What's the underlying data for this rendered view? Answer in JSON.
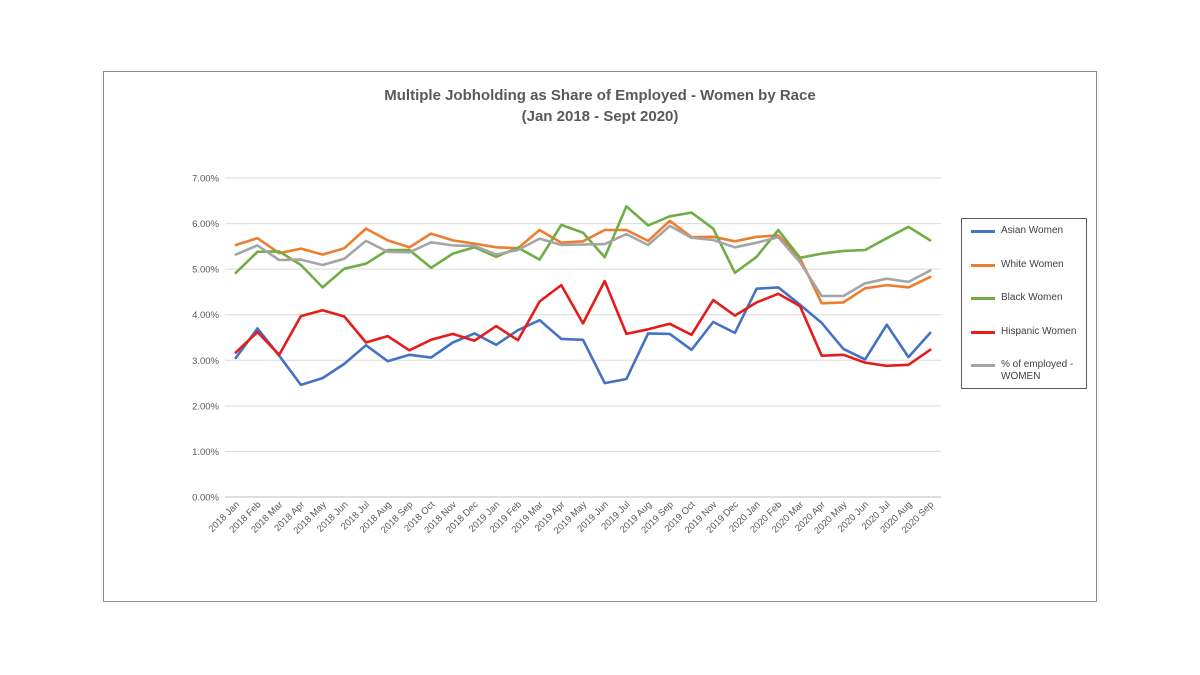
{
  "chart_data": {
    "type": "line",
    "title": "Multiple Jobholding as Share of Employed - Women by Race",
    "subtitle": "(Jan 2018 - Sept 2020)",
    "xlabel": "",
    "ylabel": "",
    "ylim": [
      0,
      0.07
    ],
    "yticks": [
      "0.00%",
      "1.00%",
      "2.00%",
      "3.00%",
      "4.00%",
      "5.00%",
      "6.00%",
      "7.00%"
    ],
    "grid": true,
    "legend_position": "right",
    "categories": [
      "2018 Jan",
      "2018 Feb",
      "2018 Mar",
      "2018 Apr",
      "2018 May",
      "2018 Jun",
      "2018 Jul",
      "2018 Aug",
      "2018 Sep",
      "2018 Oct",
      "2018 Nov",
      "2018 Dec",
      "2019 Jan",
      "2019 Feb",
      "2019 Mar",
      "2019 Apr",
      "2019 May",
      "2019 Jun",
      "2019 Jul",
      "2019 Aug",
      "2019 Sep",
      "2019 Oct",
      "2019 Nov",
      "2019 Dec",
      "2020 Jan",
      "2020 Feb",
      "2020 Mar",
      "2020 Apr",
      "2020 May",
      "2020 Jun",
      "2020 Jul",
      "2020 Aug",
      "2020 Sep"
    ],
    "series": [
      {
        "name": "Asian Women",
        "color": "#4472c4",
        "values": [
          0.0305,
          0.037,
          0.031,
          0.0246,
          0.0261,
          0.0292,
          0.0333,
          0.0298,
          0.0312,
          0.0306,
          0.0339,
          0.0359,
          0.0334,
          0.0366,
          0.0388,
          0.0347,
          0.0345,
          0.025,
          0.0259,
          0.0359,
          0.0358,
          0.0323,
          0.0384,
          0.036,
          0.0457,
          0.046,
          0.0422,
          0.0382,
          0.0325,
          0.0302,
          0.0378,
          0.0307,
          0.036
        ]
      },
      {
        "name": "White Women",
        "color": "#ed7d31",
        "values": [
          0.0553,
          0.0568,
          0.0535,
          0.0545,
          0.0532,
          0.0546,
          0.0589,
          0.0563,
          0.0548,
          0.0578,
          0.0563,
          0.0556,
          0.0548,
          0.0546,
          0.0586,
          0.0558,
          0.0561,
          0.0586,
          0.0586,
          0.0562,
          0.0606,
          0.057,
          0.0571,
          0.0561,
          0.0571,
          0.0574,
          0.0524,
          0.0425,
          0.0427,
          0.0458,
          0.0465,
          0.046,
          0.0483
        ]
      },
      {
        "name": "Black Women",
        "color": "#70ad47",
        "values": [
          0.0492,
          0.0538,
          0.0539,
          0.0509,
          0.046,
          0.0501,
          0.0512,
          0.0542,
          0.0542,
          0.0503,
          0.0534,
          0.0548,
          0.0527,
          0.0547,
          0.0521,
          0.0597,
          0.058,
          0.0526,
          0.0638,
          0.0596,
          0.0616,
          0.0624,
          0.0589,
          0.0492,
          0.0527,
          0.0586,
          0.0525,
          0.0534,
          0.054,
          0.0542,
          0.0568,
          0.0593,
          0.0563
        ]
      },
      {
        "name": "Hispanic Women",
        "color": "#e51c1c",
        "values": [
          0.0317,
          0.0362,
          0.0312,
          0.0397,
          0.041,
          0.0396,
          0.0339,
          0.0353,
          0.0322,
          0.0345,
          0.0358,
          0.0343,
          0.0375,
          0.0344,
          0.0429,
          0.0465,
          0.0381,
          0.0474,
          0.0358,
          0.0368,
          0.038,
          0.0356,
          0.0432,
          0.0398,
          0.0427,
          0.0446,
          0.0419,
          0.031,
          0.0312,
          0.0295,
          0.0288,
          0.029,
          0.0323
        ]
      },
      {
        "name": "% of employed - WOMEN",
        "color": "#a5a5a5",
        "values": [
          0.0532,
          0.0552,
          0.052,
          0.0521,
          0.0509,
          0.0523,
          0.0562,
          0.0538,
          0.0537,
          0.0559,
          0.0552,
          0.0551,
          0.0532,
          0.0542,
          0.0567,
          0.0553,
          0.0554,
          0.0555,
          0.0577,
          0.0553,
          0.0595,
          0.0569,
          0.0564,
          0.0548,
          0.0558,
          0.057,
          0.0515,
          0.0441,
          0.0441,
          0.0469,
          0.0479,
          0.0472,
          0.0497
        ]
      }
    ]
  }
}
